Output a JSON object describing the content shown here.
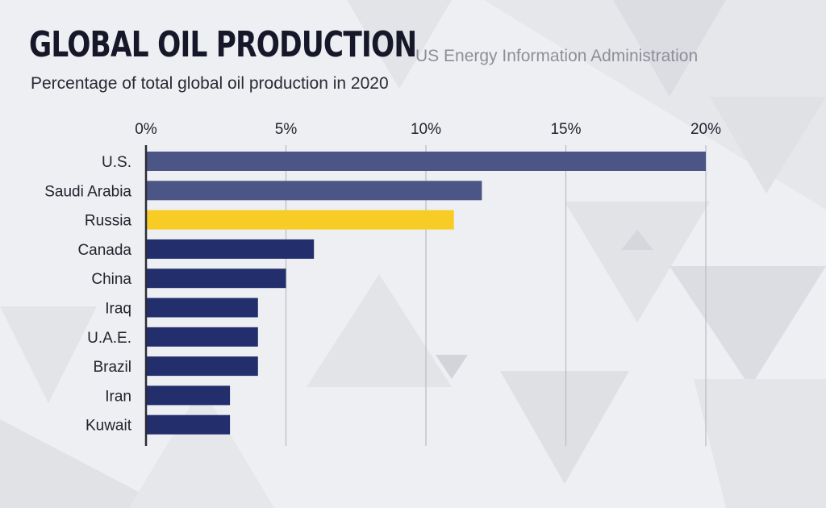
{
  "header": {
    "title": "GLOBAL OIL PRODUCTION",
    "source": "US Energy Information Administration",
    "subtitle": "Percentage of total global oil production in 2020"
  },
  "colors": {
    "bar_highlight_blue": "#4b5586",
    "bar_dark_blue": "#232f6c",
    "bar_yellow": "#f6cc25",
    "gridline": "#b9bcc4",
    "axis": "#2b2b35"
  },
  "chart_data": {
    "type": "bar",
    "orientation": "horizontal",
    "title": "GLOBAL OIL PRODUCTION",
    "subtitle": "Percentage of total global oil production in 2020",
    "xlabel": "",
    "ylabel": "",
    "xlim": [
      0,
      20
    ],
    "ticks": [
      0,
      5,
      10,
      15,
      20
    ],
    "tick_labels": [
      "0%",
      "5%",
      "10%",
      "15%",
      "20%"
    ],
    "grid": true,
    "categories": [
      "U.S.",
      "Saudi Arabia",
      "Russia",
      "Canada",
      "China",
      "Iraq",
      "U.A.E.",
      "Brazil",
      "Iran",
      "Kuwait"
    ],
    "values": [
      20,
      12,
      11,
      6,
      5,
      4,
      4,
      4,
      3,
      3
    ],
    "bar_colors": [
      "#4b5586",
      "#4b5586",
      "#f6cc25",
      "#232f6c",
      "#232f6c",
      "#232f6c",
      "#232f6c",
      "#232f6c",
      "#232f6c",
      "#232f6c"
    ]
  }
}
